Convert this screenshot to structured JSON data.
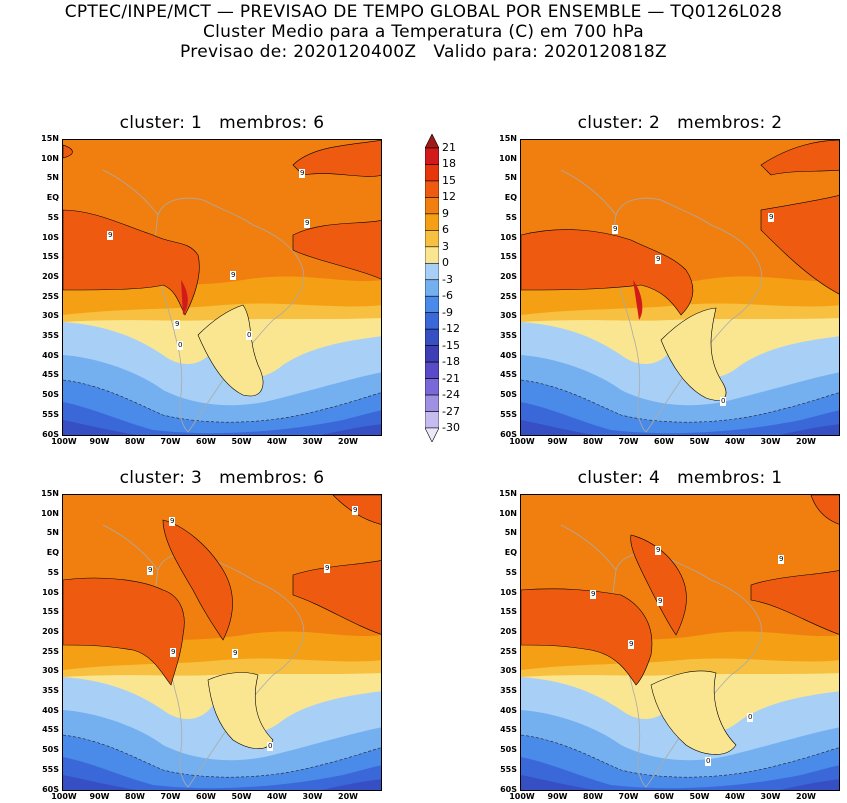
{
  "header": {
    "line1": "CPTEC/INPE/MCT — PREVISAO DE TEMPO GLOBAL POR ENSEMBLE — TQ0126L028",
    "line2": "Cluster Medio para a Temperatura (C) em 700 hPa",
    "line3": "Previsao de: 2020120400Z   Valido para: 2020120818Z"
  },
  "panels": [
    {
      "title": "cluster: 1   membros: 6"
    },
    {
      "title": "cluster: 2   membros: 2"
    },
    {
      "title": "cluster: 3   membros: 6"
    },
    {
      "title": "cluster: 4   membros: 1"
    }
  ],
  "lat_labels": [
    "15N",
    "10N",
    "5N",
    "EQ",
    "5S",
    "10S",
    "15S",
    "20S",
    "25S",
    "30S",
    "35S",
    "40S",
    "45S",
    "50S",
    "55S",
    "60S"
  ],
  "lon_labels": [
    "100W",
    "90W",
    "80W",
    "70W",
    "60W",
    "50W",
    "40W",
    "30W",
    "20W"
  ],
  "colorbar": {
    "levels": [
      "21",
      "18",
      "15",
      "12",
      "9",
      "6",
      "3",
      "0",
      "-3",
      "-6",
      "-9",
      "-12",
      "-15",
      "-18",
      "-21",
      "-24",
      "-27",
      "-30"
    ],
    "colors": [
      "#a01818",
      "#d11a1a",
      "#e8360c",
      "#ee5a10",
      "#f07f10",
      "#f5a014",
      "#f7c040",
      "#fae590",
      "#a8cff5",
      "#74b0f0",
      "#4a8ae8",
      "#3a68d8",
      "#3650c4",
      "#3e3eb4",
      "#5a4ac8",
      "#7a68d8",
      "#a090e4",
      "#c6bcf0",
      "#ece8fa"
    ]
  },
  "contour_labels": {
    "p1": [
      "9",
      "9",
      "9",
      "9",
      "9",
      "0",
      "0"
    ],
    "p2": [
      "9",
      "9",
      "9",
      "0"
    ],
    "p3": [
      "9",
      "9",
      "9",
      "9",
      "9",
      "9",
      "0"
    ],
    "p4": [
      "9",
      "9",
      "9",
      "9",
      "9",
      "0",
      "0"
    ]
  },
  "map_colors": {
    "orange_dark": "#ee5a10",
    "orange": "#f07f10",
    "orange_light": "#f5a014",
    "yellow": "#f7c040",
    "pale_yellow": "#fae590",
    "blue_light": "#a8cff5",
    "blue": "#74b0f0",
    "blue_mid": "#4a8ae8",
    "blue_dark": "#3a68d8",
    "indigo": "#3650c4",
    "red": "#d11a1a"
  }
}
